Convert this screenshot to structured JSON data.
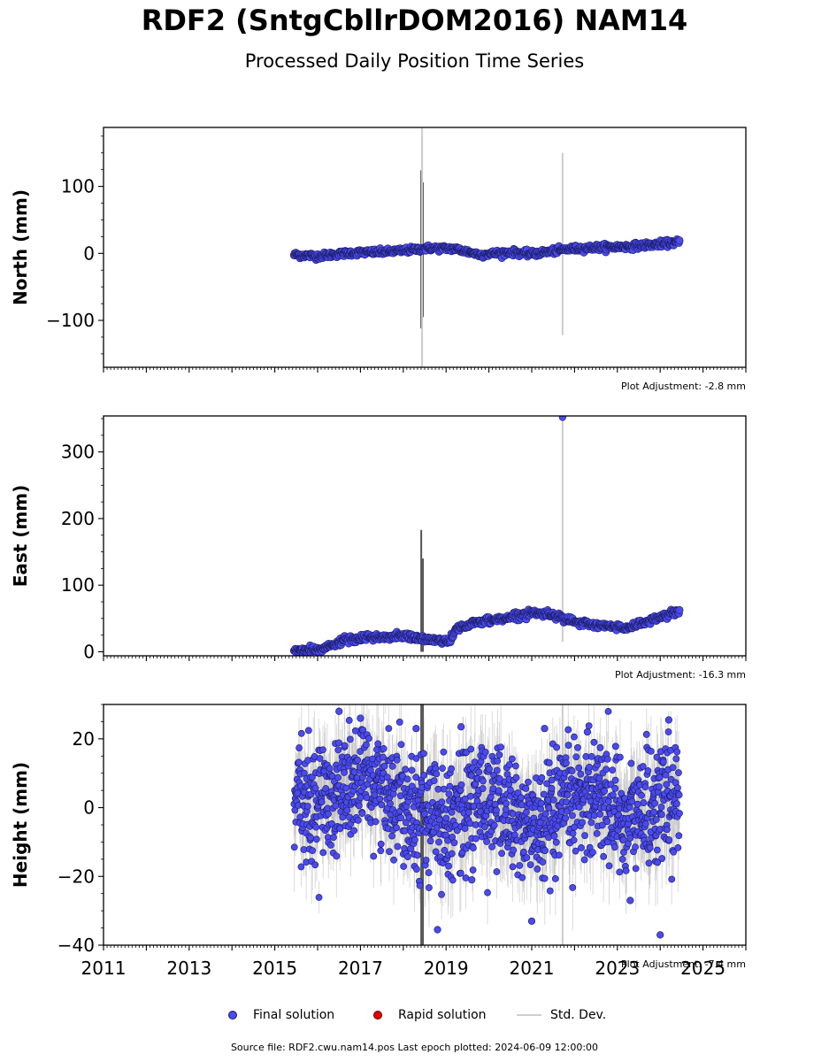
{
  "header": {
    "title": "RDF2 (SntgCbllrDOM2016) NAM14",
    "subtitle": "Processed Daily Position Time Series"
  },
  "legend": {
    "final": "Final solution",
    "rapid": "Rapid solution",
    "std": "Std. Dev."
  },
  "footer": "Source file: RDF2.cwu.nam14.pos  Last epoch plotted: 2024-06-09 12:00:00",
  "colors": {
    "final": "#4a4aef",
    "final_edge": "#1b1b5e",
    "rapid": "#e00000",
    "std": "#b0b0b0",
    "axis": "#000000"
  },
  "chart_data": [
    {
      "type": "scatter",
      "component": "north",
      "ylabel": "North (mm)",
      "ylim": [
        -170,
        188
      ],
      "yticks": [
        -100,
        0,
        100
      ],
      "ytick_labels": [
        "−100",
        "0",
        "100"
      ],
      "xlim": [
        2011.0,
        2026.0
      ],
      "adjustment": "Plot Adjustment: -2.8 mm",
      "trend": [
        [
          2015.45,
          -2
        ],
        [
          2016.0,
          -4
        ],
        [
          2016.8,
          1
        ],
        [
          2017.5,
          2
        ],
        [
          2018.0,
          4
        ],
        [
          2018.6,
          8
        ],
        [
          2019.2,
          7
        ],
        [
          2019.8,
          -2
        ],
        [
          2020.5,
          2
        ],
        [
          2021.0,
          -1
        ],
        [
          2021.8,
          6
        ],
        [
          2022.5,
          9
        ],
        [
          2023.2,
          10
        ],
        [
          2024.0,
          14
        ],
        [
          2024.45,
          17
        ]
      ],
      "scatter_sd": 2.2,
      "big_bars": [
        {
          "x": 2018.42,
          "lo": -112,
          "hi": 124,
          "color": "#555555"
        },
        {
          "x": 2018.46,
          "lo": -95,
          "hi": 106,
          "color": "#555555"
        },
        {
          "x": 2018.44,
          "lo": -170,
          "hi": 188,
          "color": "#cccccc"
        },
        {
          "x": 2021.72,
          "lo": -122,
          "hi": 150,
          "color": "#cccccc"
        }
      ],
      "outliers": []
    },
    {
      "type": "scatter",
      "component": "east",
      "ylabel": "East (mm)",
      "ylim": [
        -6,
        354
      ],
      "yticks": [
        0,
        100,
        200,
        300
      ],
      "ytick_labels": [
        "0",
        "100",
        "200",
        "300"
      ],
      "xlim": [
        2011.0,
        2026.0
      ],
      "adjustment": "Plot Adjustment: -16.3 mm",
      "trend": [
        [
          2015.45,
          2
        ],
        [
          2016.0,
          3
        ],
        [
          2016.3,
          8
        ],
        [
          2016.6,
          17
        ],
        [
          2017.2,
          21
        ],
        [
          2018.0,
          24
        ],
        [
          2018.6,
          18
        ],
        [
          2019.1,
          17
        ],
        [
          2019.25,
          36
        ],
        [
          2019.8,
          45
        ],
        [
          2020.5,
          52
        ],
        [
          2021.0,
          59
        ],
        [
          2021.6,
          55
        ],
        [
          2022.0,
          44
        ],
        [
          2022.8,
          38
        ],
        [
          2023.2,
          36
        ],
        [
          2023.6,
          44
        ],
        [
          2024.0,
          52
        ],
        [
          2024.45,
          62
        ]
      ],
      "scatter_sd": 2.5,
      "big_bars": [
        {
          "x": 2018.42,
          "lo": 0,
          "hi": 183,
          "color": "#555555"
        },
        {
          "x": 2018.46,
          "lo": 0,
          "hi": 140,
          "color": "#555555"
        },
        {
          "x": 2021.72,
          "lo": 15,
          "hi": 352,
          "color": "#cccccc"
        }
      ],
      "outliers": [
        [
          2021.72,
          352
        ]
      ]
    },
    {
      "type": "scatter",
      "component": "height",
      "ylabel": "Height (mm)",
      "ylim": [
        -40,
        30
      ],
      "yticks": [
        -40,
        -20,
        0,
        20
      ],
      "ytick_labels": [
        "−40",
        "−20",
        "0",
        "20"
      ],
      "xlim": [
        2011.0,
        2026.0
      ],
      "xticks": [
        2011,
        2013,
        2015,
        2017,
        2019,
        2021,
        2023,
        2025
      ],
      "xtick_labels": [
        "2011",
        "2013",
        "2015",
        "2017",
        "2019",
        "2021",
        "2023",
        "2025"
      ],
      "adjustment": "Plot Adjustment: -7.4 mm",
      "trend": [
        [
          2015.45,
          0
        ],
        [
          2016.0,
          2
        ],
        [
          2016.8,
          6
        ],
        [
          2017.3,
          8
        ],
        [
          2018.0,
          3
        ],
        [
          2018.6,
          -3
        ],
        [
          2019.2,
          -2
        ],
        [
          2019.8,
          3
        ],
        [
          2020.3,
          0
        ],
        [
          2020.8,
          -5
        ],
        [
          2021.4,
          -6
        ],
        [
          2021.9,
          2
        ],
        [
          2022.5,
          5
        ],
        [
          2023.2,
          -4
        ],
        [
          2023.8,
          1
        ],
        [
          2024.45,
          2
        ]
      ],
      "scatter_sd": 8.5,
      "big_bars": [
        {
          "x": 2018.42,
          "lo": -40,
          "hi": 30,
          "color": "#555555"
        },
        {
          "x": 2018.46,
          "lo": -40,
          "hi": 30,
          "color": "#555555"
        },
        {
          "x": 2021.72,
          "lo": -40,
          "hi": 30,
          "color": "#cccccc"
        }
      ],
      "outliers": [
        [
          2016.5,
          28
        ],
        [
          2017.0,
          26
        ],
        [
          2018.3,
          23
        ],
        [
          2019.35,
          23.5
        ],
        [
          2021.3,
          23
        ],
        [
          2022.3,
          22
        ],
        [
          2024.2,
          25.5
        ],
        [
          2018.8,
          -35.5
        ],
        [
          2021.0,
          -33
        ],
        [
          2024.0,
          -37
        ],
        [
          2023.3,
          -27
        ],
        [
          2019.6,
          -21
        ]
      ]
    }
  ]
}
